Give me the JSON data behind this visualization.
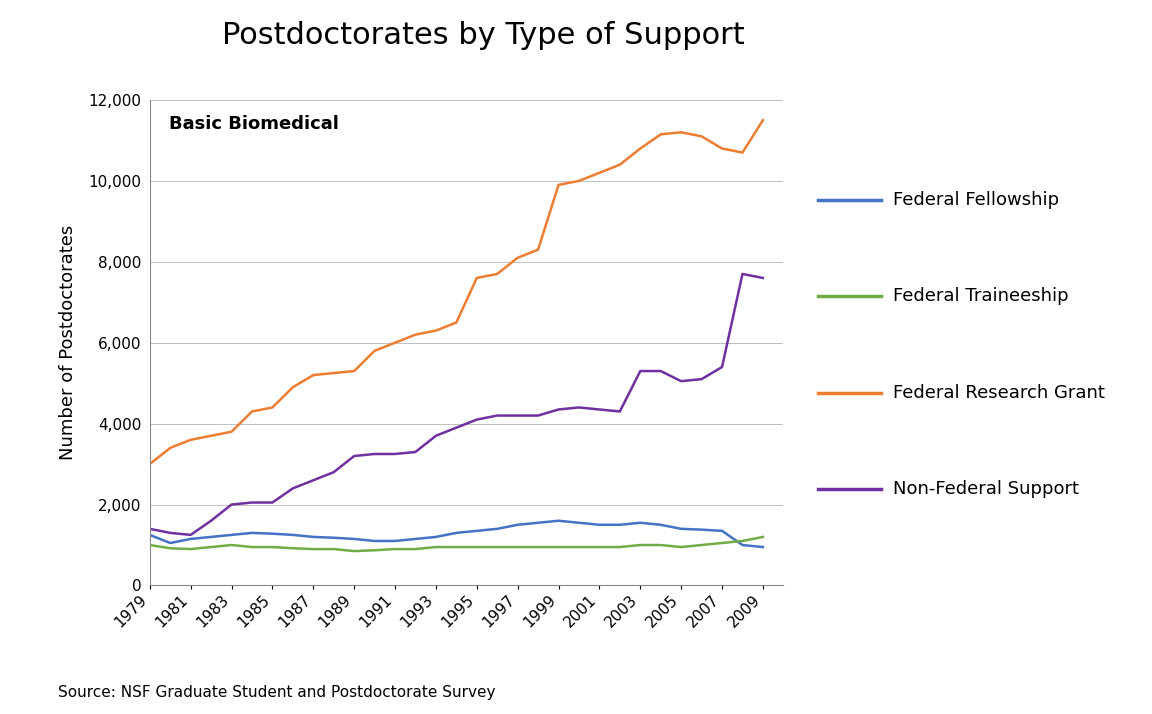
{
  "title": "Postdoctorates by Type of Support",
  "subtitle": "Basic Biomedical",
  "ylabel": "Number of Postdoctorates",
  "source": "Source: NSF Graduate Student and Postdoctorate Survey",
  "years": [
    1979,
    1980,
    1981,
    1982,
    1983,
    1984,
    1985,
    1986,
    1987,
    1988,
    1989,
    1990,
    1991,
    1992,
    1993,
    1994,
    1995,
    1996,
    1997,
    1998,
    1999,
    2000,
    2001,
    2002,
    2003,
    2004,
    2005,
    2006,
    2007,
    2008,
    2009
  ],
  "federal_fellowship": [
    1250,
    1050,
    1150,
    1200,
    1250,
    1300,
    1280,
    1250,
    1200,
    1180,
    1150,
    1100,
    1100,
    1150,
    1200,
    1300,
    1350,
    1400,
    1500,
    1550,
    1600,
    1550,
    1500,
    1500,
    1550,
    1500,
    1400,
    1380,
    1350,
    1000,
    950
  ],
  "federal_traineeship": [
    1000,
    920,
    900,
    950,
    1000,
    950,
    950,
    920,
    900,
    900,
    850,
    870,
    900,
    900,
    950,
    950,
    950,
    950,
    950,
    950,
    950,
    950,
    950,
    950,
    1000,
    1000,
    950,
    1000,
    1050,
    1100,
    1200
  ],
  "federal_research_grant": [
    3000,
    3400,
    3600,
    3700,
    3800,
    4300,
    4400,
    4900,
    5200,
    5250,
    5300,
    5800,
    6000,
    6200,
    6300,
    6500,
    7600,
    7700,
    8100,
    8300,
    9900,
    10000,
    10200,
    10400,
    10800,
    11150,
    11200,
    11100,
    10800,
    10700,
    11500
  ],
  "non_federal_support": [
    1400,
    1300,
    1250,
    1600,
    2000,
    2050,
    2050,
    2400,
    2600,
    2800,
    3200,
    3250,
    3250,
    3300,
    3700,
    3900,
    4100,
    4200,
    4200,
    4200,
    4350,
    4400,
    4350,
    4300,
    5300,
    5300,
    5050,
    5100,
    5400,
    7700,
    7600
  ],
  "colors": {
    "federal_fellowship": "#4472C4",
    "federal_traineeship": "#70AD47",
    "federal_research_grant": "#ED7D31",
    "non_federal_support": "#7030A0"
  },
  "legend_labels": {
    "federal_fellowship": "Federal Fellowship",
    "federal_traineeship": "Federal Traineeship",
    "federal_research_grant": "Federal Research Grant",
    "non_federal_support": "Non-Federal Support"
  },
  "ylim": [
    0,
    12000
  ],
  "yticks": [
    0,
    2000,
    4000,
    6000,
    8000,
    10000,
    12000
  ],
  "xlim": [
    1979,
    2010
  ],
  "background_color": "#ffffff",
  "title_fontsize": 22,
  "axis_label_fontsize": 13,
  "tick_fontsize": 11,
  "legend_fontsize": 13,
  "subtitle_fontsize": 13,
  "source_fontsize": 11,
  "linewidth": 1.8
}
